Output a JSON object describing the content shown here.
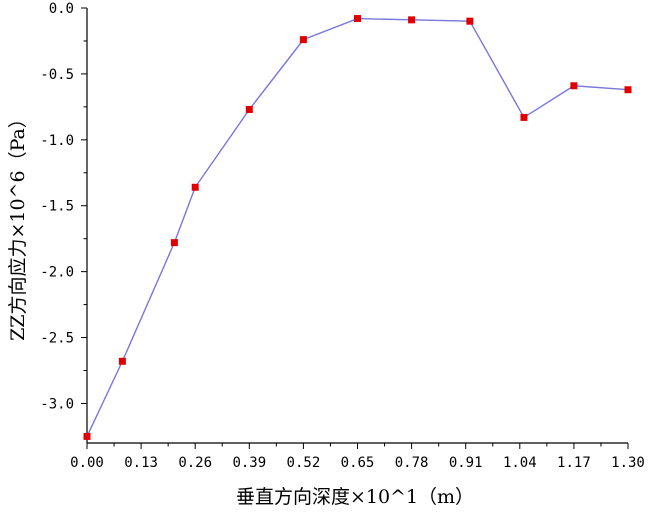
{
  "chart_data": {
    "type": "line",
    "xlabel": "垂直方向深度×10^1（m）",
    "ylabel": "ZZ方向应力×10^6（Pa）",
    "xlim": [
      0.0,
      1.3
    ],
    "ylim": [
      -3.3,
      0.0
    ],
    "x_ticks": [
      "0.00",
      "0.13",
      "0.26",
      "0.39",
      "0.52",
      "0.65",
      "0.78",
      "0.91",
      "1.04",
      "1.17",
      "1.30"
    ],
    "y_ticks": [
      "0.0",
      "-0.5",
      "-1.0",
      "-1.5",
      "-2.0",
      "-2.5",
      "-3.0"
    ],
    "x_tick_values": [
      0.0,
      0.13,
      0.26,
      0.39,
      0.52,
      0.65,
      0.78,
      0.91,
      1.04,
      1.17,
      1.3
    ],
    "y_tick_values": [
      0.0,
      -0.5,
      -1.0,
      -1.5,
      -2.0,
      -2.5,
      -3.0
    ],
    "grid": false,
    "series": [
      {
        "x": [
          0.0,
          0.085,
          0.21,
          0.26,
          0.39,
          0.52,
          0.65,
          0.78,
          0.92,
          1.05,
          1.17,
          1.3
        ],
        "y": [
          -3.25,
          -2.68,
          -1.78,
          -1.36,
          -0.77,
          -0.24,
          -0.08,
          -0.09,
          -0.1,
          -0.83,
          -0.59,
          -0.62
        ],
        "line_color": "#7777dd",
        "marker_color": "#e00000"
      }
    ]
  }
}
